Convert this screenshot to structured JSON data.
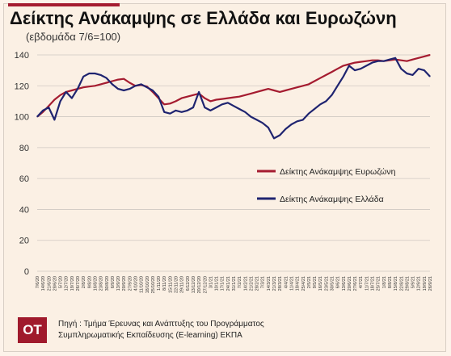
{
  "title": "Δείκτης Ανάκαμψης σε Ελλάδα και Ευρωζώνη",
  "subtitle": "(εβδομάδα 7/6=100)",
  "footer": {
    "logo": "OT",
    "line1": "Πηγή : Τμήμα Έρευνας και Ανάπτυξης του Προγράμματος",
    "line2": "Συμπληρωματικής Εκπαίδευσης (E-learning) ΕΚΠΑ"
  },
  "chart_data": {
    "type": "line",
    "ylim": [
      0,
      140
    ],
    "yticks": [
      0,
      20,
      40,
      60,
      80,
      100,
      120,
      140
    ],
    "grid": true,
    "legend_position": "right-middle",
    "x": [
      "7/6/20",
      "14/6/20",
      "21/6/20",
      "28/6/20",
      "5/7/20",
      "12/7/20",
      "19/7/20",
      "26/7/20",
      "2/8/20",
      "9/8/20",
      "16/8/20",
      "23/8/20",
      "30/8/20",
      "6/9/20",
      "13/9/20",
      "20/9/20",
      "27/9/20",
      "4/10/20",
      "11/10/20",
      "18/10/20",
      "25/10/20",
      "1/11/20",
      "8/11/20",
      "15/11/20",
      "22/11/20",
      "29/11/20",
      "6/12/20",
      "13/12/20",
      "20/12/20",
      "27/12/20",
      "3/1/21",
      "10/1/21",
      "17/1/21",
      "24/1/21",
      "31/1/21",
      "7/2/21",
      "14/2/21",
      "21/2/21",
      "28/2/21",
      "7/3/21",
      "14/3/21",
      "21/3/21",
      "28/3/21",
      "4/4/21",
      "11/4/21",
      "18/4/21",
      "25/4/21",
      "2/5/21",
      "9/5/21",
      "16/5/21",
      "23/5/21",
      "30/5/21",
      "6/6/21",
      "13/6/21",
      "20/6/21",
      "27/6/21",
      "4/7/21",
      "11/7/21",
      "18/7/21",
      "25/7/21",
      "1/8/21",
      "8/8/21",
      "15/8/21",
      "22/8/21",
      "29/8/21",
      "5/9/21",
      "12/9/21",
      "19/9/21",
      "26/9/21"
    ],
    "series": [
      {
        "name": "Δείκτης Ανάκαμψης Ευρωζώνη",
        "color": "#a51c30",
        "values": [
          100,
          103,
          107,
          111,
          114,
          116,
          117,
          118,
          119,
          119.5,
          120,
          121,
          122,
          123,
          124,
          124.5,
          122,
          120,
          120.5,
          119.5,
          116,
          112,
          108,
          108.5,
          110,
          112,
          113,
          114,
          115,
          112,
          110,
          111,
          111.5,
          112,
          112.5,
          113,
          114,
          115,
          116,
          117,
          118,
          117,
          116,
          117,
          118,
          119,
          120,
          121,
          123,
          125,
          127,
          129,
          131,
          133,
          134,
          135,
          135.5,
          136,
          136.5,
          136.5,
          136,
          136.5,
          137,
          136.5,
          136,
          137,
          138,
          139,
          140
        ]
      },
      {
        "name": "Δείκτης Ανάκαμψης Ελλάδα",
        "color": "#1f2470",
        "values": [
          100,
          104,
          106,
          98,
          110,
          116,
          112,
          118,
          126,
          128,
          128,
          127,
          125,
          121,
          118,
          117,
          118,
          120,
          121,
          119,
          117,
          113,
          103,
          102,
          104,
          103,
          104,
          106,
          116,
          106,
          104,
          106,
          108,
          109,
          107,
          105,
          103,
          100,
          98,
          96,
          93,
          86,
          88,
          92,
          95,
          97,
          98,
          102,
          105,
          108,
          110,
          114,
          120,
          126,
          133,
          130,
          131,
          133,
          135,
          136,
          136,
          137,
          138,
          131,
          128,
          127,
          131,
          130,
          126
        ]
      }
    ]
  }
}
